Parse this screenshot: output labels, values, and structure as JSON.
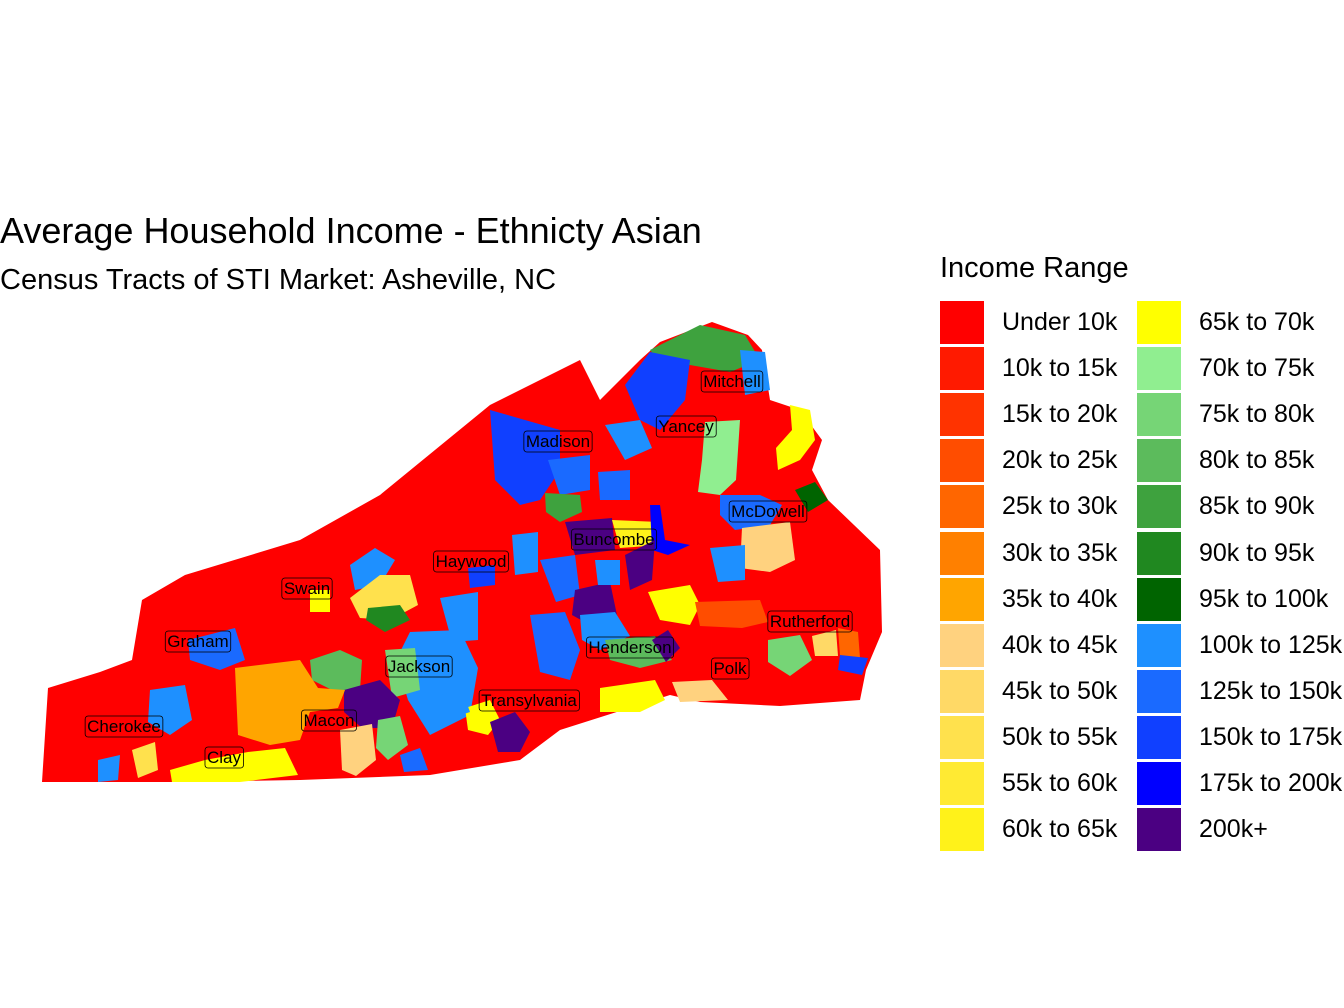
{
  "title": "Average Household Income - Ethnicty Asian",
  "subtitle": "Census Tracts of STI Market: Asheville, NC",
  "legend": {
    "title": "Income Range",
    "items": [
      {
        "label": "Under 10k",
        "color": "#FF0000"
      },
      {
        "label": "10k to 15k",
        "color": "#FF1A00"
      },
      {
        "label": "15k to 20k",
        "color": "#FF3300"
      },
      {
        "label": "20k to 25k",
        "color": "#FF4D00"
      },
      {
        "label": "25k to 30k",
        "color": "#FF6600"
      },
      {
        "label": "30k to 35k",
        "color": "#FF8000"
      },
      {
        "label": "35k to 40k",
        "color": "#FFA500"
      },
      {
        "label": "40k to 45k",
        "color": "#FFD27F"
      },
      {
        "label": "45k to 50k",
        "color": "#FFD966"
      },
      {
        "label": "50k to 55k",
        "color": "#FFE14D"
      },
      {
        "label": "55k to 60k",
        "color": "#FFEA33"
      },
      {
        "label": "60k to 65k",
        "color": "#FFF21A"
      },
      {
        "label": "65k to 70k",
        "color": "#FFFF00"
      },
      {
        "label": "70k to 75k",
        "color": "#90EE90"
      },
      {
        "label": "75k to 80k",
        "color": "#76D576"
      },
      {
        "label": "80k to 85k",
        "color": "#5CBB5C"
      },
      {
        "label": "85k to 90k",
        "color": "#3EA23E"
      },
      {
        "label": "90k to 95k",
        "color": "#208820"
      },
      {
        "label": "95k to 100k",
        "color": "#006400"
      },
      {
        "label": "100k to 125k",
        "color": "#1E90FF"
      },
      {
        "label": "125k to 150k",
        "color": "#1A6AFF"
      },
      {
        "label": "150k to 175k",
        "color": "#1040FF"
      },
      {
        "label": "175k to 200k",
        "color": "#0000FF"
      },
      {
        "label": "200k+",
        "color": "#4B0082"
      }
    ]
  },
  "counties": [
    "Mitchell",
    "Yancey",
    "Madison",
    "McDowell",
    "Buncombe",
    "Haywood",
    "Swain",
    "Rutherford",
    "Graham",
    "Henderson",
    "Jackson",
    "Polk",
    "Transylvania",
    "Macon",
    "Cherokee",
    "Clay"
  ]
}
